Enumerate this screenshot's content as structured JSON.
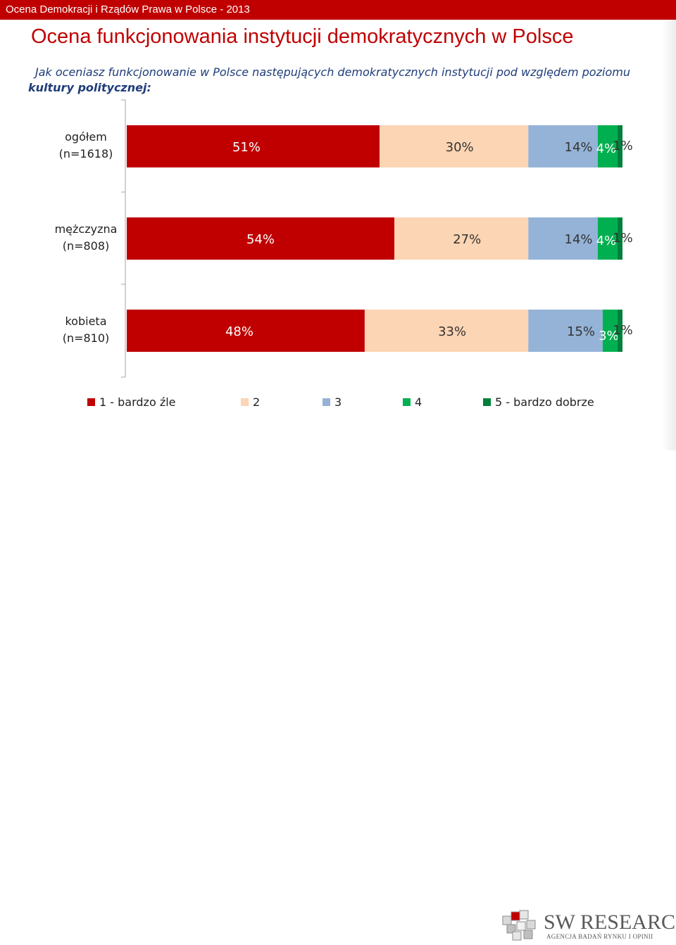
{
  "header": {
    "bar_title": "Ocena Demokracji i Rządów Prawa w Polsce - 2013",
    "title": "Ocena funkcjonowania instytucji demokratycznych w Polsce",
    "question_line1": "Jak oceniasz funkcjonowanie w Polsce następujących demokratycznych instytucji pod względem poziomu",
    "question_line2": "kultury politycznej:"
  },
  "colors": {
    "accent": "#c00000",
    "s1": "#c00000",
    "s2": "#fcd5b4",
    "s3": "#95b3d7",
    "s4": "#00b050",
    "s5": "#00803a"
  },
  "chart_data": {
    "type": "bar",
    "orientation": "horizontal",
    "stacked": "100%",
    "categories": [
      [
        "ogółem",
        "(n=1618)"
      ],
      [
        "mężczyzna",
        "(n=808)"
      ],
      [
        "kobieta",
        "(n=810)"
      ]
    ],
    "series": [
      {
        "name": "1 - bardzo źle",
        "values": [
          51,
          54,
          48
        ],
        "labels": [
          "51%",
          "54%",
          "48%"
        ]
      },
      {
        "name": "2",
        "values": [
          30,
          27,
          33
        ],
        "labels": [
          "30%",
          "27%",
          "33%"
        ]
      },
      {
        "name": "3",
        "values": [
          14,
          14,
          15
        ],
        "labels": [
          "14%",
          "14%",
          "15%"
        ]
      },
      {
        "name": "4",
        "values": [
          4,
          4,
          3
        ],
        "labels": [
          "4%",
          "4%",
          "3%"
        ]
      },
      {
        "name": "5 - bardzo dobrze",
        "values": [
          1,
          1,
          1
        ],
        "labels": [
          "1%",
          "1%",
          "1%"
        ]
      }
    ],
    "legend_position": "bottom",
    "grid": false
  },
  "logo": {
    "name": "SW RESEARCH",
    "tagline": "AGENCJA BADAŃ RYNKU I OPINII"
  }
}
